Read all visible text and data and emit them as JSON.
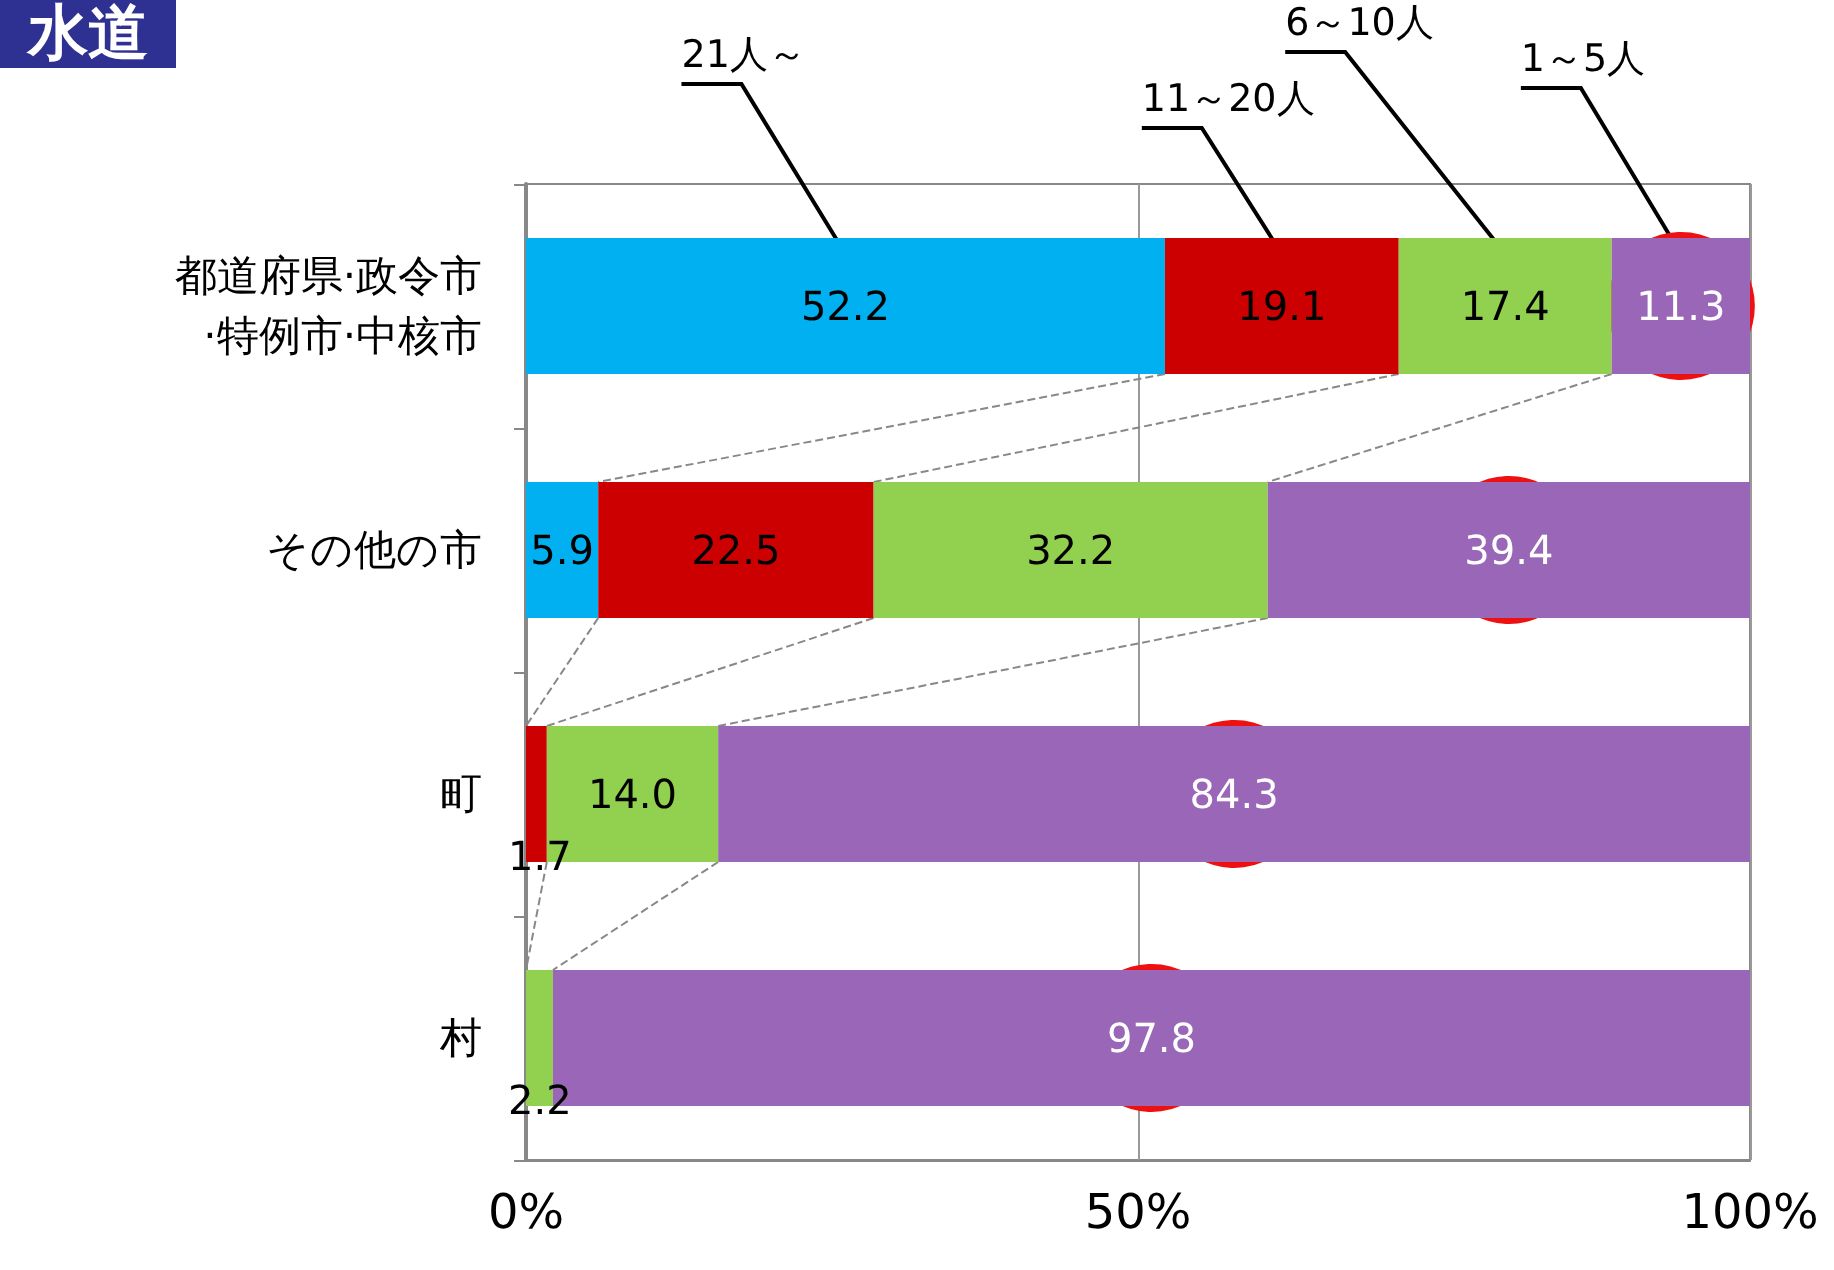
{
  "chart_data": {
    "type": "bar",
    "orientation": "horizontal",
    "stacked": true,
    "title": "水道",
    "categories": [
      "都道府県·政令市·特例市·中核市",
      "その他の市",
      "町",
      "村"
    ],
    "series": [
      {
        "name": "21人～",
        "color": "#00b0f0",
        "values": [
          52.2,
          5.9,
          null,
          null
        ],
        "value_labels": [
          "52.2",
          "5.9",
          null,
          null
        ]
      },
      {
        "name": "11～20人",
        "color": "#cc0000",
        "values": [
          19.1,
          22.5,
          1.7,
          null
        ],
        "value_labels": [
          "19.1",
          "22.5",
          "1.7",
          null
        ]
      },
      {
        "name": "6～10人",
        "color": "#92d050",
        "values": [
          17.4,
          32.2,
          14.0,
          2.2
        ],
        "value_labels": [
          "17.4",
          "32.2",
          "14.0",
          "2.2"
        ]
      },
      {
        "name": "1～5人",
        "color": "#9966b8",
        "values": [
          11.3,
          39.4,
          84.3,
          97.8
        ],
        "value_labels": [
          "11.3",
          "39.4",
          "84.3",
          "97.8"
        ]
      }
    ],
    "xlim": [
      0,
      100
    ],
    "xticks": [
      {
        "value": 0,
        "label": "0%"
      },
      {
        "value": 50,
        "label": "50%"
      },
      {
        "value": 100,
        "label": "100%"
      }
    ],
    "grid": "x",
    "legend": false
  }
}
